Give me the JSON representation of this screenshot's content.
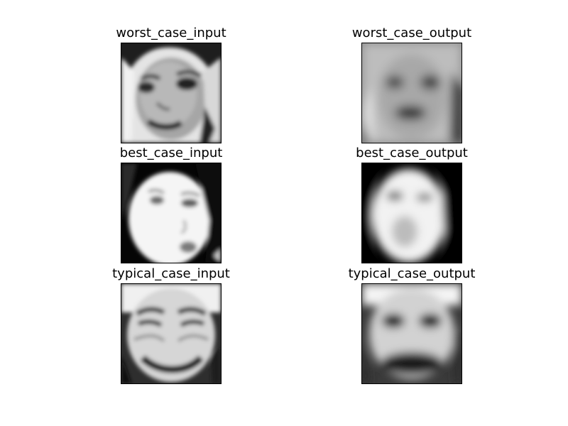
{
  "panels": [
    {
      "id": "worst-case-input",
      "title": "worst_case_input",
      "icon": "face-photo-icon"
    },
    {
      "id": "worst-case-output",
      "title": "worst_case_output",
      "icon": "face-reconstruction-icon"
    },
    {
      "id": "best-case-input",
      "title": "best_case_input",
      "icon": "face-photo-icon"
    },
    {
      "id": "best-case-output",
      "title": "best_case_output",
      "icon": "face-reconstruction-icon"
    },
    {
      "id": "typical-case-input",
      "title": "typical_case_input",
      "icon": "face-photo-icon"
    },
    {
      "id": "typical-case-output",
      "title": "typical_case_output",
      "icon": "face-reconstruction-icon"
    }
  ]
}
